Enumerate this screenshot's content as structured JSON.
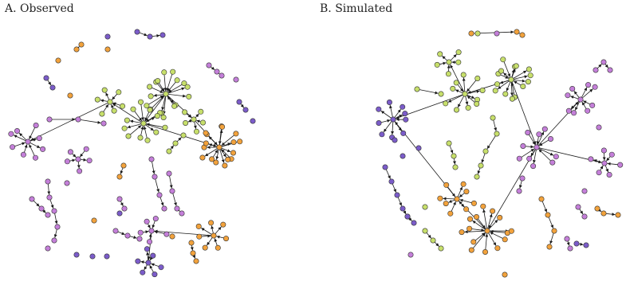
{
  "figure": {
    "panels": [
      {
        "key": "a",
        "title": "A. Observed"
      },
      {
        "key": "b",
        "title": "B. Simulated"
      }
    ],
    "node_colors": {
      "purple": "#7b5cc9",
      "violet": "#c47fd9",
      "green": "#c7df6b",
      "orange": "#f2a23c"
    },
    "edge_color": "#1a1a1a"
  }
}
